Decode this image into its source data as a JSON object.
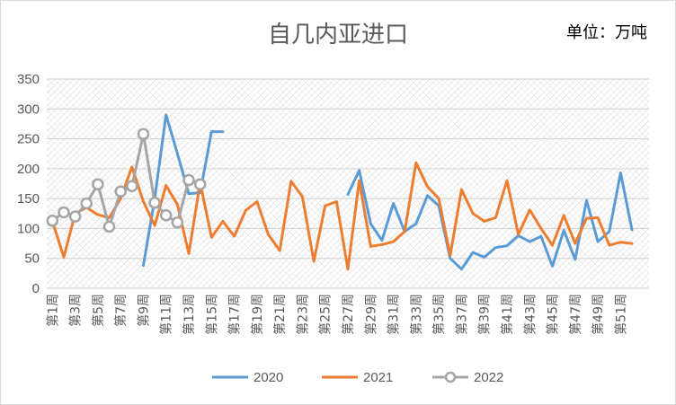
{
  "chart_data": {
    "type": "line",
    "title": "自几内亚进口",
    "unit_label": "单位：万吨",
    "ylim": [
      0,
      350
    ],
    "yticks": [
      0,
      50,
      100,
      150,
      200,
      250,
      300,
      350
    ],
    "x_tick_labels": [
      "第1周",
      "第3周",
      "第5周",
      "第7周",
      "第9周",
      "第11周",
      "第13周",
      "第15周",
      "第17周",
      "第19周",
      "第21周",
      "第23周",
      "第25周",
      "第27周",
      "第29周",
      "第31周",
      "第33周",
      "第35周",
      "第37周",
      "第39周",
      "第41周",
      "第43周",
      "第45周",
      "第47周",
      "第49周",
      "第51周"
    ],
    "x_count": 53,
    "grid": "horizontal",
    "legend_position": "bottom",
    "series": [
      {
        "name": "2020",
        "color": "#5B9BD5",
        "marker": false,
        "values": [
          null,
          null,
          null,
          null,
          null,
          null,
          null,
          null,
          38,
          150,
          290,
          225,
          158,
          160,
          262,
          262,
          null,
          null,
          null,
          null,
          null,
          null,
          null,
          null,
          null,
          null,
          157,
          197,
          108,
          80,
          142,
          95,
          108,
          155,
          138,
          50,
          32,
          60,
          52,
          68,
          71,
          88,
          78,
          87,
          37,
          97,
          48,
          147,
          78,
          95,
          193,
          98,
          null
        ]
      },
      {
        "name": "2021",
        "color": "#ED7D31",
        "marker": false,
        "values": [
          112,
          52,
          125,
          135,
          123,
          118,
          150,
          203,
          145,
          105,
          172,
          140,
          58,
          177,
          85,
          112,
          87,
          130,
          145,
          90,
          63,
          179,
          153,
          45,
          138,
          145,
          32,
          180,
          70,
          73,
          78,
          95,
          210,
          170,
          150,
          55,
          165,
          125,
          112,
          118,
          180,
          90,
          131,
          100,
          72,
          122,
          75,
          117,
          118,
          72,
          77,
          75,
          null
        ]
      },
      {
        "name": "2022",
        "color": "#A5A5A5",
        "marker": true,
        "values": [
          113,
          127,
          120,
          142,
          174,
          103,
          162,
          171,
          258,
          143,
          122,
          110,
          181,
          174,
          null,
          null,
          null,
          null,
          null,
          null,
          null,
          null,
          null,
          null,
          null,
          null,
          null,
          null,
          null,
          null,
          null,
          null,
          null,
          null,
          null,
          null,
          null,
          null,
          null,
          null,
          null,
          null,
          null,
          null,
          null,
          null,
          null,
          null,
          null,
          null,
          null,
          null,
          null
        ]
      }
    ]
  }
}
